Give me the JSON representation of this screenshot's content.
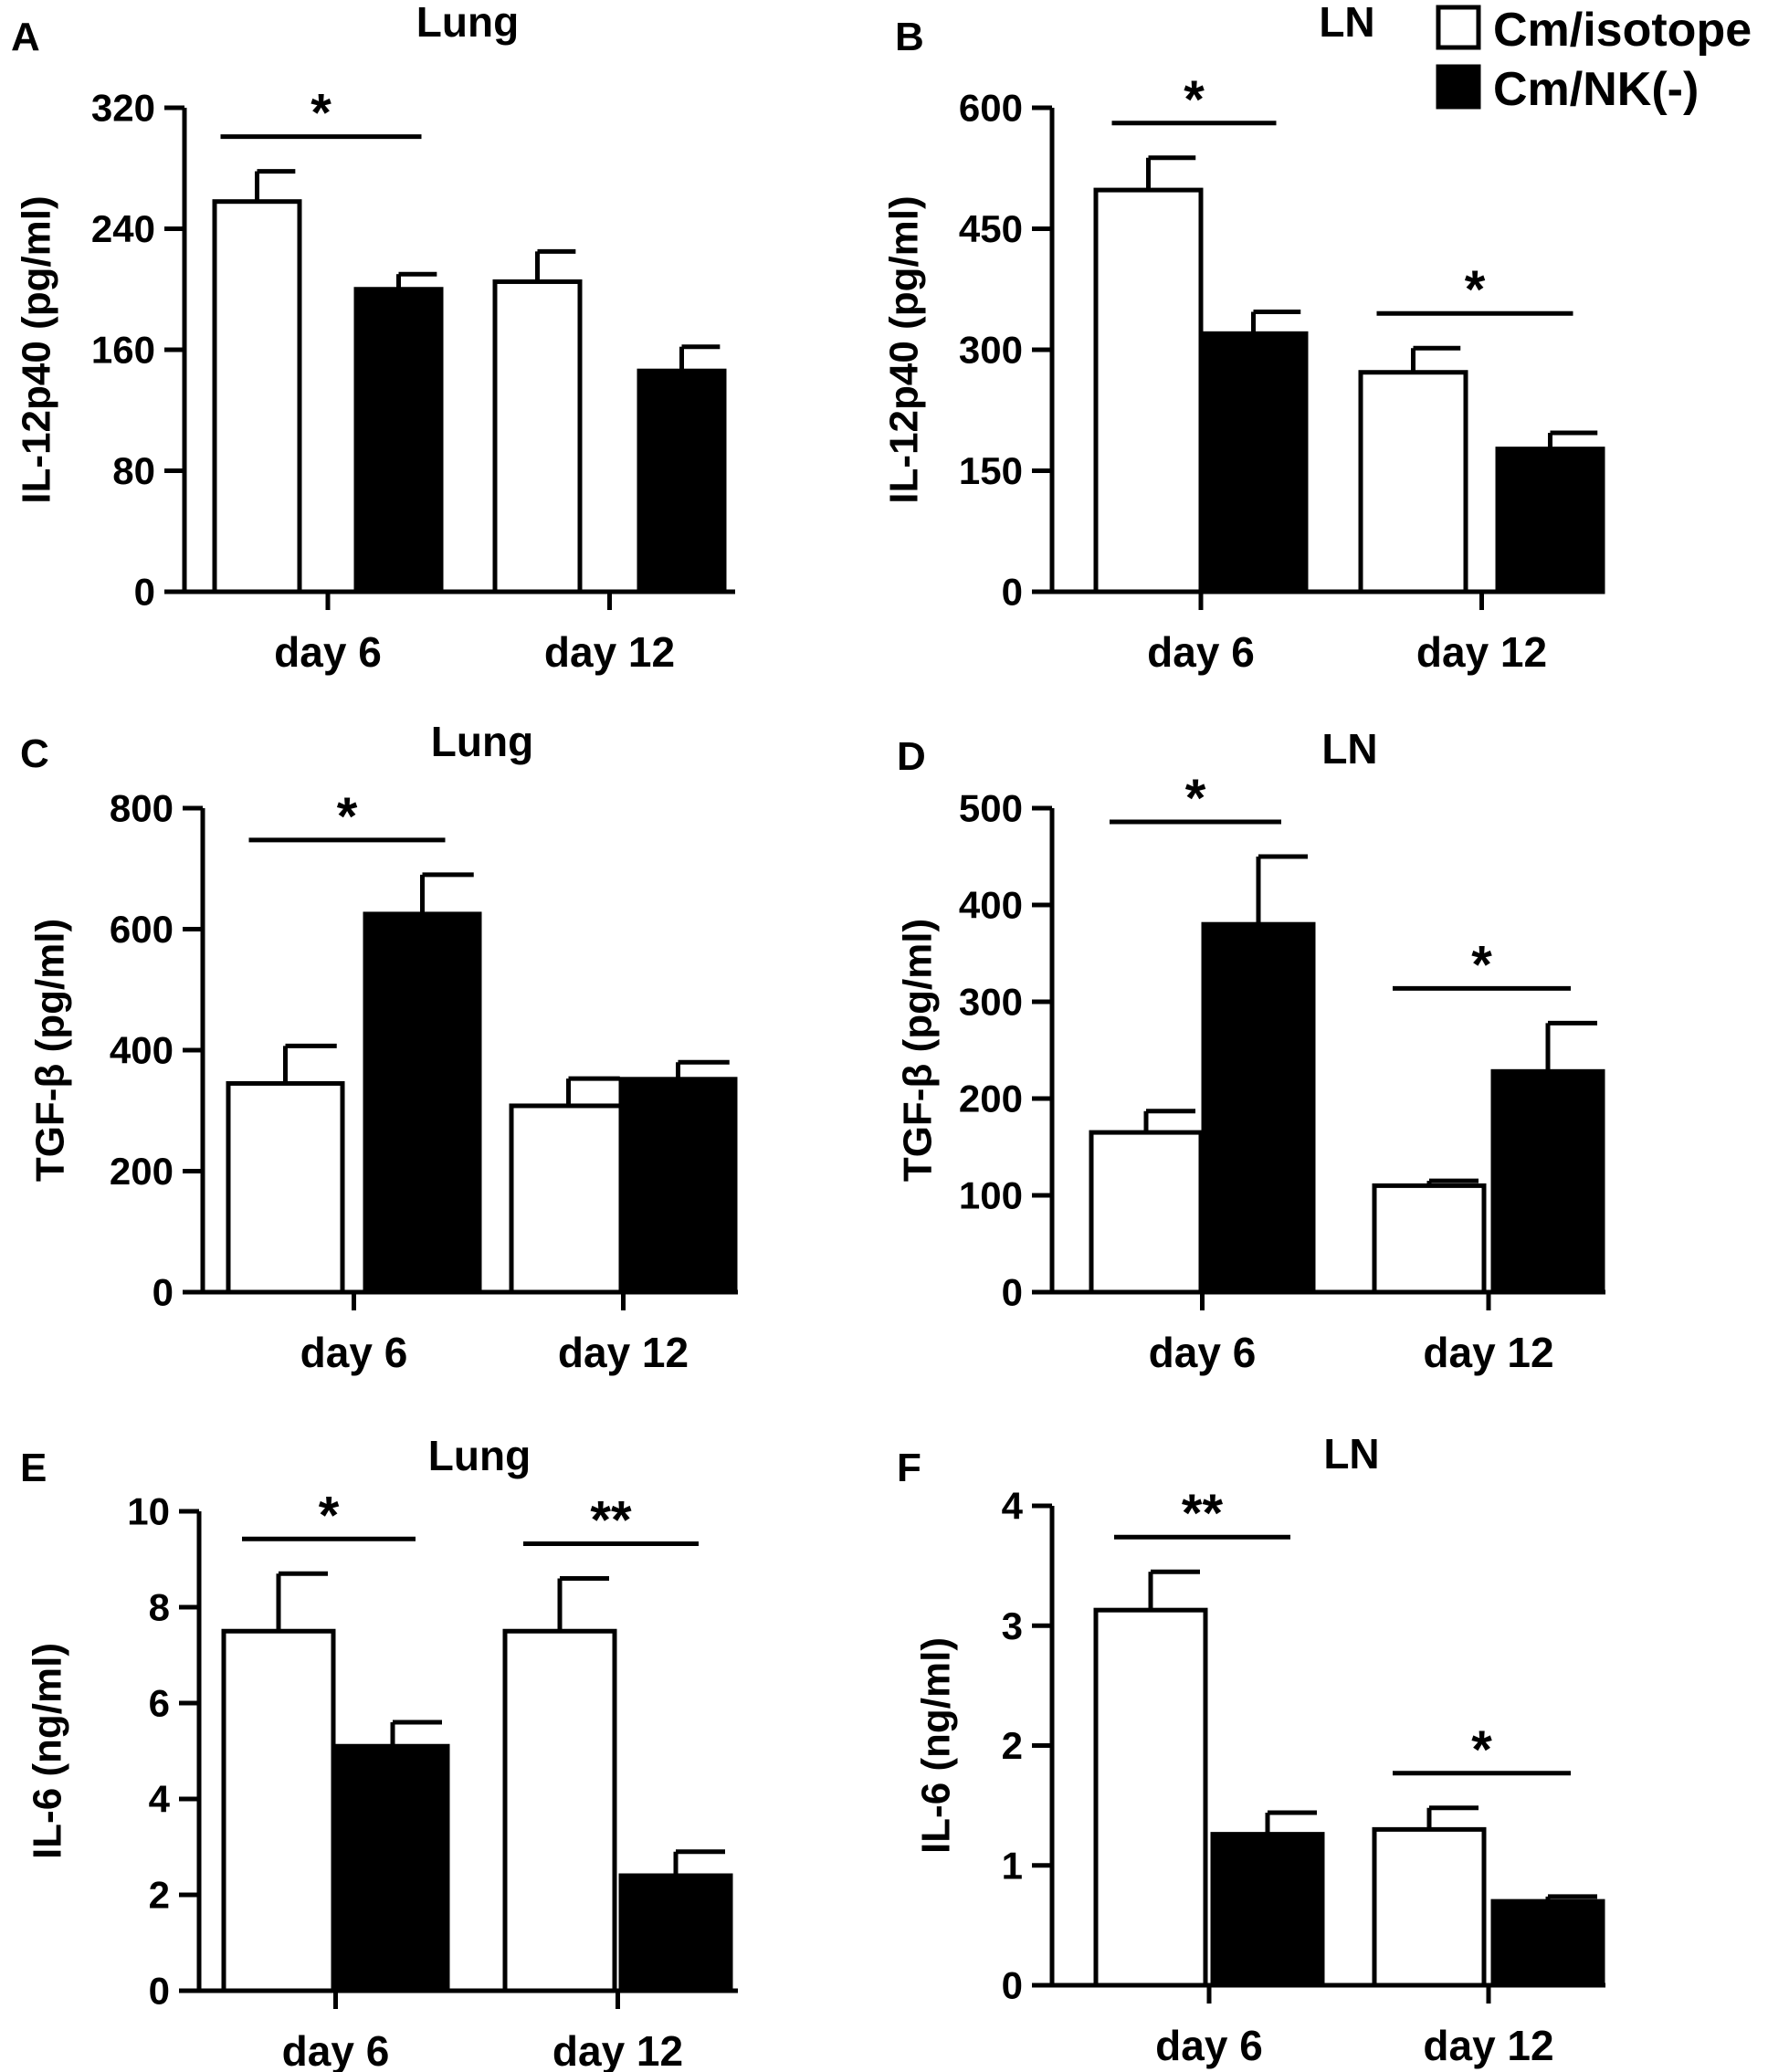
{
  "legend": {
    "entries": [
      {
        "label": "Cm/isotope",
        "fill": "#ffffff"
      },
      {
        "label": "Cm/NK(-)",
        "fill": "#000000"
      }
    ]
  },
  "chart_data": [
    {
      "type": "bar",
      "panel": "A",
      "title": "Lung",
      "ylabel": "IL-12p40 (pg/ml)",
      "categories": [
        "day 6",
        "day 12"
      ],
      "ylim": [
        0,
        320
      ],
      "yticks": [
        "0",
        "80",
        "160",
        "240",
        "320"
      ],
      "series": [
        {
          "name": "Cm/isotope",
          "values": [
            258,
            205
          ],
          "errors": [
            20,
            20
          ]
        },
        {
          "name": "Cm/NK(-)",
          "values": [
            200,
            146
          ],
          "errors": [
            10,
            16
          ]
        }
      ],
      "significance": [
        {
          "category": "day 6",
          "label": "*"
        }
      ],
      "grid": false
    },
    {
      "type": "bar",
      "panel": "B",
      "title": "LN",
      "ylabel": "IL-12p40 (pg/ml)",
      "categories": [
        "day 6",
        "day 12"
      ],
      "ylim": [
        0,
        600
      ],
      "yticks": [
        "0",
        "150",
        "300",
        "450",
        "600"
      ],
      "series": [
        {
          "name": "Cm/isotope",
          "values": [
            498,
            272
          ],
          "errors": [
            40,
            30
          ]
        },
        {
          "name": "Cm/NK(-)",
          "values": [
            320,
            177
          ],
          "errors": [
            27,
            20
          ]
        }
      ],
      "significance": [
        {
          "category": "day 6",
          "label": "*"
        },
        {
          "category": "day 12",
          "label": "*"
        }
      ],
      "legend_position": "top-right",
      "grid": false
    },
    {
      "type": "bar",
      "panel": "C",
      "title": "Lung",
      "ylabel": "TGF-β (pg/ml)",
      "categories": [
        "day 6",
        "day 12"
      ],
      "ylim": [
        0,
        800
      ],
      "yticks": [
        "0",
        "200",
        "400",
        "600",
        "800"
      ],
      "series": [
        {
          "name": "Cm/isotope",
          "values": [
            345,
            308
          ],
          "errors": [
            62,
            45
          ]
        },
        {
          "name": "Cm/NK(-)",
          "values": [
            625,
            352
          ],
          "errors": [
            65,
            28
          ]
        }
      ],
      "significance": [
        {
          "category": "day 6",
          "label": "*"
        }
      ],
      "grid": false
    },
    {
      "type": "bar",
      "panel": "D",
      "title": "LN",
      "ylabel": "TGF-β (pg/ml)",
      "categories": [
        "day 6",
        "day 12"
      ],
      "ylim": [
        0,
        500
      ],
      "yticks": [
        "0",
        "100",
        "200",
        "300",
        "400",
        "500"
      ],
      "series": [
        {
          "name": "Cm/isotope",
          "values": [
            165,
            110
          ],
          "errors": [
            22,
            5
          ]
        },
        {
          "name": "Cm/NK(-)",
          "values": [
            380,
            228
          ],
          "errors": [
            70,
            50
          ]
        }
      ],
      "significance": [
        {
          "category": "day 6",
          "label": "*"
        },
        {
          "category": "day 12",
          "label": "*"
        }
      ],
      "grid": false
    },
    {
      "type": "bar",
      "panel": "E",
      "title": "Lung",
      "ylabel": "IL-6 (ng/ml)",
      "categories": [
        "day 6",
        "day 12"
      ],
      "ylim": [
        0,
        10
      ],
      "yticks": [
        "0",
        "2",
        "4",
        "6",
        "8",
        "10"
      ],
      "series": [
        {
          "name": "Cm/isotope",
          "values": [
            7.5,
            7.5
          ],
          "errors": [
            1.2,
            1.1
          ]
        },
        {
          "name": "Cm/NK(-)",
          "values": [
            5.1,
            2.4
          ],
          "errors": [
            0.5,
            0.5
          ]
        }
      ],
      "significance": [
        {
          "category": "day 6",
          "label": "*"
        },
        {
          "category": "day 12",
          "label": "**"
        }
      ],
      "grid": false
    },
    {
      "type": "bar",
      "panel": "F",
      "title": "LN",
      "ylabel": "IL-6 (ng/ml)",
      "categories": [
        "day 6",
        "day 12"
      ],
      "ylim": [
        0,
        4
      ],
      "yticks": [
        "0",
        "1",
        "2",
        "3",
        "4"
      ],
      "series": [
        {
          "name": "Cm/isotope",
          "values": [
            3.13,
            1.3
          ],
          "errors": [
            0.32,
            0.18
          ]
        },
        {
          "name": "Cm/NK(-)",
          "values": [
            1.26,
            0.7
          ],
          "errors": [
            0.18,
            0.04
          ]
        }
      ],
      "significance": [
        {
          "category": "day 6",
          "label": "**"
        },
        {
          "category": "day 12",
          "label": "*"
        }
      ],
      "grid": false
    }
  ]
}
